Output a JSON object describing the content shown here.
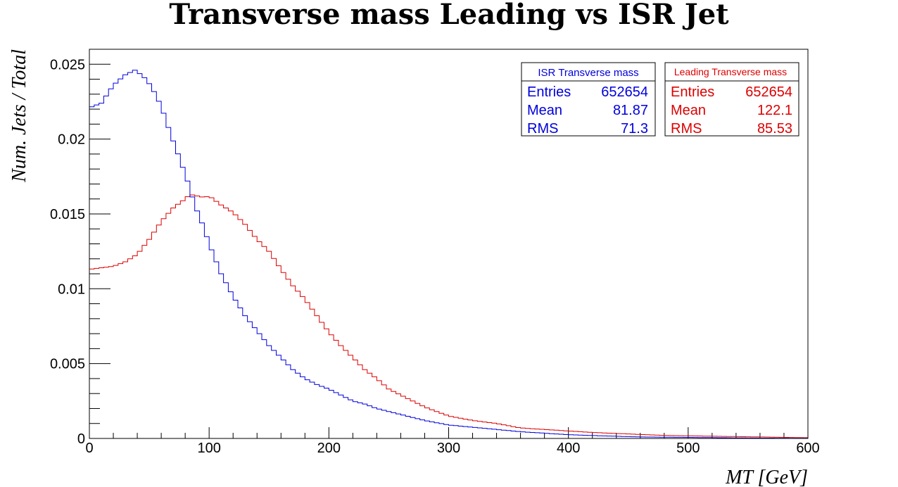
{
  "chart_data": {
    "type": "histogram",
    "title": "Transverse mass Leading vs ISR Jet",
    "xlabel": "MT [GeV]",
    "ylabel": "Num. Jets / Total",
    "xlim": [
      0,
      600
    ],
    "ylim": [
      0,
      0.026
    ],
    "x_ticks": [
      0,
      100,
      200,
      300,
      400,
      500,
      600
    ],
    "y_ticks": [
      0,
      0.005,
      0.01,
      0.015,
      0.02,
      0.025
    ],
    "y_tick_labels": [
      "0",
      "0.005",
      "0.01",
      "0.015",
      "0.02",
      "0.025"
    ],
    "grid": false,
    "bin_width": 4,
    "series": [
      {
        "name": "ISR Transverse mass",
        "color": "#0000dd",
        "stats": {
          "entries": "652654",
          "mean": "81.87",
          "rms": "71.3"
        },
        "profile": [
          [
            0,
            0.0221
          ],
          [
            10,
            0.0224
          ],
          [
            20,
            0.0236
          ],
          [
            30,
            0.0243
          ],
          [
            38,
            0.0246
          ],
          [
            45,
            0.0242
          ],
          [
            52,
            0.0235
          ],
          [
            60,
            0.0222
          ],
          [
            68,
            0.0203
          ],
          [
            75,
            0.0188
          ],
          [
            82,
            0.0172
          ],
          [
            88,
            0.0156
          ],
          [
            95,
            0.0142
          ],
          [
            100,
            0.013
          ],
          [
            110,
            0.011
          ],
          [
            120,
            0.0095
          ],
          [
            130,
            0.0082
          ],
          [
            140,
            0.0072
          ],
          [
            150,
            0.0062
          ],
          [
            160,
            0.0054
          ],
          [
            170,
            0.0046
          ],
          [
            180,
            0.004
          ],
          [
            190,
            0.0036
          ],
          [
            200,
            0.0033
          ],
          [
            210,
            0.0029
          ],
          [
            220,
            0.0025
          ],
          [
            230,
            0.0023
          ],
          [
            240,
            0.002
          ],
          [
            250,
            0.0018
          ],
          [
            260,
            0.0016
          ],
          [
            270,
            0.0014
          ],
          [
            280,
            0.0012
          ],
          [
            300,
            0.0009
          ],
          [
            320,
            0.00075
          ],
          [
            340,
            0.0006
          ],
          [
            360,
            0.00045
          ],
          [
            380,
            0.00035
          ],
          [
            400,
            0.00025
          ],
          [
            430,
            0.00017
          ],
          [
            460,
            0.0001
          ],
          [
            500,
            7e-05
          ],
          [
            550,
            3e-05
          ],
          [
            600,
            1e-05
          ]
        ]
      },
      {
        "name": "Leading Transverse mass",
        "color": "#dd0000",
        "stats": {
          "entries": "652654",
          "mean": "122.1",
          "rms": "85.53"
        },
        "profile": [
          [
            0,
            0.0113
          ],
          [
            10,
            0.0114
          ],
          [
            20,
            0.0115
          ],
          [
            30,
            0.0118
          ],
          [
            40,
            0.0123
          ],
          [
            50,
            0.0133
          ],
          [
            60,
            0.0145
          ],
          [
            70,
            0.0154
          ],
          [
            80,
            0.016
          ],
          [
            84,
            0.0163
          ],
          [
            90,
            0.0162
          ],
          [
            96,
            0.0161
          ],
          [
            100,
            0.0162
          ],
          [
            110,
            0.0156
          ],
          [
            120,
            0.0151
          ],
          [
            130,
            0.0143
          ],
          [
            140,
            0.0133
          ],
          [
            150,
            0.0125
          ],
          [
            160,
            0.0113
          ],
          [
            170,
            0.0102
          ],
          [
            180,
            0.0093
          ],
          [
            190,
            0.0082
          ],
          [
            200,
            0.0071
          ],
          [
            210,
            0.0062
          ],
          [
            220,
            0.0054
          ],
          [
            230,
            0.0046
          ],
          [
            240,
            0.004
          ],
          [
            250,
            0.0033
          ],
          [
            260,
            0.0029
          ],
          [
            270,
            0.0025
          ],
          [
            280,
            0.0021
          ],
          [
            290,
            0.0018
          ],
          [
            300,
            0.0015
          ],
          [
            320,
            0.0012
          ],
          [
            340,
            0.001
          ],
          [
            360,
            0.0007
          ],
          [
            380,
            0.0006
          ],
          [
            400,
            0.0005
          ],
          [
            420,
            0.0004
          ],
          [
            450,
            0.0003
          ],
          [
            480,
            0.0002
          ],
          [
            520,
            0.00015
          ],
          [
            560,
            0.0001
          ],
          [
            600,
            5e-05
          ]
        ]
      }
    ]
  }
}
